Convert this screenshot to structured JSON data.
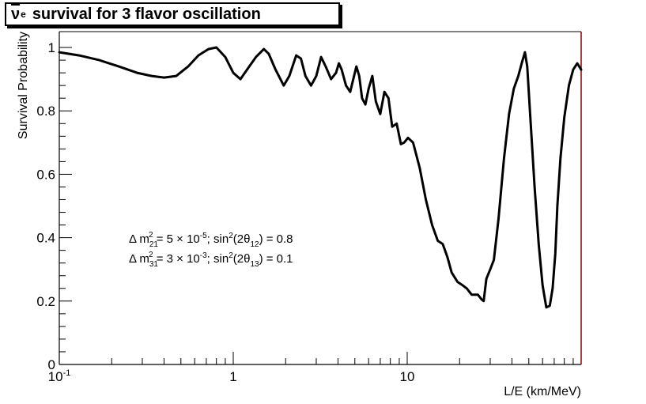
{
  "chart_data": {
    "type": "line",
    "title": {
      "nu": "ν",
      "nu_sub": "e",
      "text": "survival for 3 flavor oscillation"
    },
    "xlabel": "L/E (km/MeV)",
    "ylabel": "Survival Probability",
    "x_scale": "log",
    "xlim": [
      0.1,
      100
    ],
    "ylim": [
      0,
      1.05
    ],
    "x_ticks": [
      {
        "value": 0.1,
        "label_base": "10",
        "label_exp": "-1"
      },
      {
        "value": 1,
        "label_base": "1",
        "label_exp": ""
      },
      {
        "value": 10,
        "label_base": "10",
        "label_exp": ""
      }
    ],
    "y_ticks": [
      {
        "value": 0,
        "label": "0"
      },
      {
        "value": 0.2,
        "label": "0.2"
      },
      {
        "value": 0.4,
        "label": "0.4"
      },
      {
        "value": 0.6,
        "label": "0.6"
      },
      {
        "value": 0.8,
        "label": "0.8"
      },
      {
        "value": 1,
        "label": "1"
      }
    ],
    "grid": false,
    "line_color": "#000000",
    "right_axis_color": "#8b0000",
    "annotations": [
      {
        "dm_sub": "21",
        "dm_exp": "-5",
        "dm_mantissa": "5",
        "theta_sub": "12",
        "value": "0.8"
      },
      {
        "dm_sub": "31",
        "dm_exp": "-3",
        "dm_mantissa": "3",
        "theta_sub": "13",
        "value": "0.1"
      }
    ],
    "series": [
      {
        "x": [
          0.1,
          0.13,
          0.17,
          0.22,
          0.28,
          0.34,
          0.4,
          0.47,
          0.55,
          0.63,
          0.72,
          0.8,
          0.9,
          1.0,
          1.1,
          1.2,
          1.35,
          1.5,
          1.6,
          1.75,
          1.95,
          2.1,
          2.3,
          2.45,
          2.6,
          2.8,
          3.0,
          3.2,
          3.4,
          3.65,
          3.9,
          4.05,
          4.2,
          4.45,
          4.7,
          4.9,
          5.1,
          5.3,
          5.5,
          5.75,
          6.0,
          6.3,
          6.6,
          7.0,
          7.4,
          7.8,
          8.2,
          8.7,
          9.2,
          9.6,
          10.1,
          10.8,
          11.8,
          12.8,
          13.9,
          15.0,
          16.0,
          17.0,
          18.0,
          19.5,
          20.8,
          22.0,
          23.5,
          25.5,
          26.8,
          27.5,
          28.5,
          30.0,
          31.5,
          33.5,
          36.0,
          38.5,
          41.0,
          43.5,
          45.5,
          47.5,
          49.0,
          51.0,
          54.0,
          57.0,
          60.0,
          63.0,
          66.0,
          68.5,
          71.0,
          73.0,
          76.0,
          80.0,
          85.0,
          90.0,
          95.0,
          100.0
        ],
        "y": [
          0.985,
          0.975,
          0.96,
          0.94,
          0.92,
          0.91,
          0.905,
          0.91,
          0.94,
          0.975,
          0.995,
          1.0,
          0.97,
          0.92,
          0.9,
          0.93,
          0.97,
          0.995,
          0.98,
          0.93,
          0.88,
          0.91,
          0.975,
          0.965,
          0.91,
          0.88,
          0.91,
          0.97,
          0.94,
          0.9,
          0.92,
          0.95,
          0.93,
          0.88,
          0.86,
          0.9,
          0.94,
          0.91,
          0.84,
          0.82,
          0.87,
          0.91,
          0.83,
          0.79,
          0.86,
          0.84,
          0.75,
          0.76,
          0.695,
          0.7,
          0.715,
          0.7,
          0.62,
          0.52,
          0.44,
          0.39,
          0.38,
          0.34,
          0.29,
          0.26,
          0.25,
          0.24,
          0.22,
          0.22,
          0.205,
          0.2,
          0.27,
          0.3,
          0.33,
          0.46,
          0.65,
          0.79,
          0.87,
          0.91,
          0.95,
          0.985,
          0.94,
          0.78,
          0.56,
          0.38,
          0.25,
          0.18,
          0.185,
          0.24,
          0.35,
          0.5,
          0.65,
          0.78,
          0.88,
          0.93,
          0.95,
          0.93
        ]
      }
    ]
  }
}
